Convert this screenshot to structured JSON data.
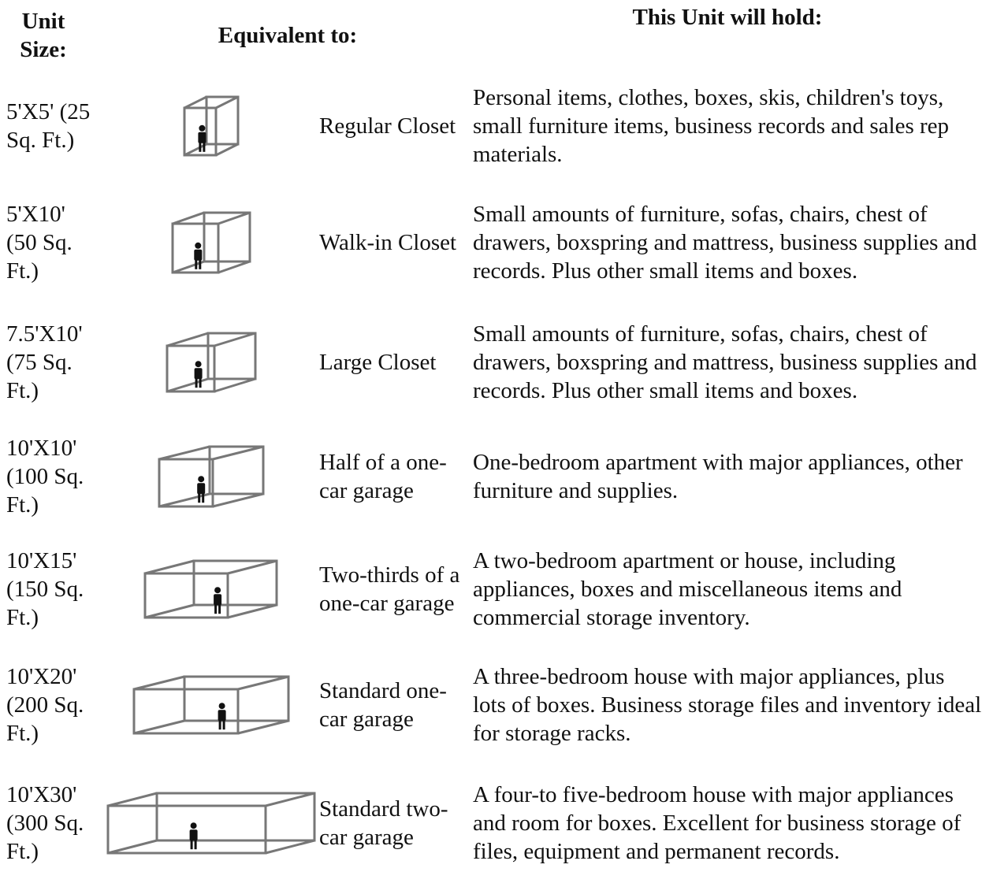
{
  "header": {
    "unit_size": "Unit Size:",
    "equivalent": "Equivalent to:",
    "holds": "This Unit will hold:"
  },
  "rows": [
    {
      "size": "5'X5' (25 Sq. Ft.)",
      "equivalent": "Regular Closet",
      "holds": "Personal items, clothes, boxes, skis, children's toys, small furniture items, business records and sales rep materials."
    },
    {
      "size": "5'X10' (50 Sq. Ft.)",
      "equivalent": "Walk-in Closet",
      "holds": "Small amounts of furniture, sofas, chairs, chest of drawers, boxspring and mattress, business supplies and records. Plus other small items and boxes."
    },
    {
      "size": "7.5'X10' (75 Sq. Ft.)",
      "equivalent": "Large Closet",
      "holds": "Small amounts of furniture, sofas, chairs, chest of drawers, boxspring and mattress, business supplies and records. Plus other small items and boxes."
    },
    {
      "size": "10'X10' (100 Sq. Ft.)",
      "equivalent": "Half of a one-car garage",
      "holds": "One-bedroom apartment with major appliances, other furniture and supplies."
    },
    {
      "size": "10'X15' (150 Sq. Ft.)",
      "equivalent": "Two-thirds of a one-car garage",
      "holds": "A two-bedroom apartment or house, including appliances, boxes and miscellaneous items and commercial storage inventory."
    },
    {
      "size": "10'X20' (200 Sq. Ft.)",
      "equivalent": "Standard one-car garage",
      "holds": "A three-bedroom house with major appliances, plus lots of boxes. Business storage files and inventory ideal for storage racks."
    },
    {
      "size": "10'X30' (300 Sq. Ft.)",
      "equivalent": "Standard two-car garage",
      "holds": "A four-to five-bedroom house with major appliances and room for boxes. Excellent for business storage of files, equipment and permanent records."
    }
  ]
}
